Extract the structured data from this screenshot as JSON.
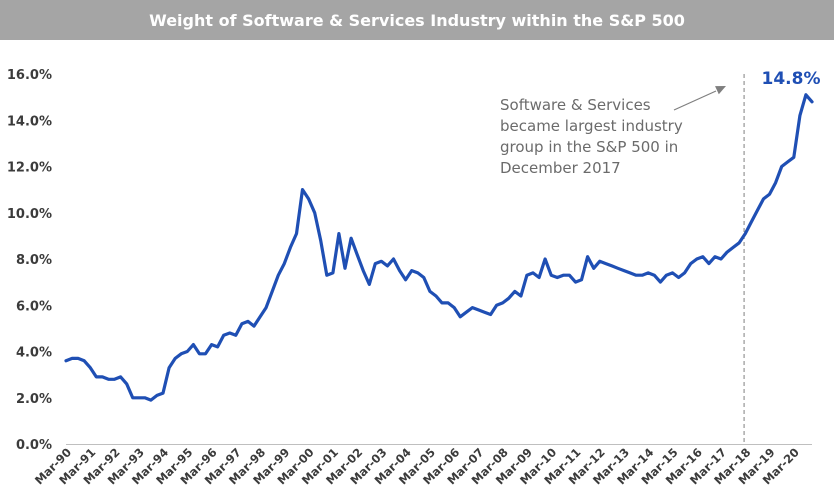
{
  "chart_data": {
    "type": "line",
    "title": "Weight of Software & Services Industry within the S&P 500",
    "xlabel": "",
    "ylabel": "",
    "ylim": [
      0,
      16
    ],
    "y_ticks": [
      "0.0%",
      "2.0%",
      "4.0%",
      "6.0%",
      "8.0%",
      "10.0%",
      "12.0%",
      "14.0%",
      "16.0%"
    ],
    "x_ticks": [
      "Mar-90",
      "Mar-91",
      "Mar-92",
      "Mar-93",
      "Mar-94",
      "Mar-95",
      "Mar-96",
      "Mar-97",
      "Mar-98",
      "Mar-99",
      "Mar-00",
      "Mar-01",
      "Mar-02",
      "Mar-03",
      "Mar-04",
      "Mar-05",
      "Mar-06",
      "Mar-07",
      "Mar-08",
      "Mar-09",
      "Mar-10",
      "Mar-11",
      "Mar-12",
      "Mar-13",
      "Mar-14",
      "Mar-15",
      "Mar-16",
      "Mar-17",
      "Mar-18",
      "Mar-19",
      "Mar-20"
    ],
    "grid": false,
    "line_color": "#1f4fb4",
    "marker_line": {
      "x": 2017.95,
      "style": "dashed",
      "color": "#7f7f7f"
    },
    "annotation": {
      "lines": [
        "Software & Services",
        "became largest industry",
        "group in the S&P 500 in",
        "December 2017"
      ]
    },
    "last_value_label": "14.8%",
    "series": [
      {
        "x": [
          1990.0,
          1990.25,
          1990.5,
          1990.75,
          1991.0,
          1991.25,
          1991.5,
          1991.75,
          1992.0,
          1992.25,
          1992.5,
          1992.75,
          1993.0,
          1993.25,
          1993.5,
          1993.75,
          1994.0,
          1994.25,
          1994.5,
          1994.75,
          1995.0,
          1995.25,
          1995.5,
          1995.75,
          1996.0,
          1996.25,
          1996.5,
          1996.75,
          1997.0,
          1997.25,
          1997.5,
          1997.75,
          1998.0,
          1998.25,
          1998.5,
          1998.75,
          1999.0,
          1999.25,
          1999.5,
          1999.75,
          2000.0,
          2000.25,
          2000.5,
          2000.75,
          2001.0,
          2001.25,
          2001.5,
          2001.75,
          2002.0,
          2002.25,
          2002.5,
          2002.75,
          2003.0,
          2003.25,
          2003.5,
          2003.75,
          2004.0,
          2004.25,
          2004.5,
          2004.75,
          2005.0,
          2005.25,
          2005.5,
          2005.75,
          2006.0,
          2006.25,
          2006.5,
          2006.75,
          2007.0,
          2007.25,
          2007.5,
          2007.75,
          2008.0,
          2008.25,
          2008.5,
          2008.75,
          2009.0,
          2009.25,
          2009.5,
          2009.75,
          2010.0,
          2010.25,
          2010.5,
          2010.75,
          2011.0,
          2011.25,
          2011.5,
          2011.75,
          2012.0,
          2012.25,
          2012.5,
          2012.75,
          2013.0,
          2013.25,
          2013.5,
          2013.75,
          2014.0,
          2014.25,
          2014.5,
          2014.75,
          2015.0,
          2015.25,
          2015.5,
          2015.75,
          2016.0,
          2016.25,
          2016.5,
          2016.75,
          2017.0,
          2017.25,
          2017.5,
          2017.75,
          2018.0,
          2018.25,
          2018.5,
          2018.75,
          2019.0,
          2019.25,
          2019.5,
          2019.75,
          2020.0,
          2020.25,
          2020.5,
          2020.75
        ],
        "values": [
          3.6,
          3.7,
          3.7,
          3.6,
          3.3,
          2.9,
          2.9,
          2.8,
          2.8,
          2.9,
          2.6,
          2.0,
          2.0,
          2.0,
          1.9,
          2.1,
          2.2,
          3.3,
          3.7,
          3.9,
          4.0,
          4.3,
          3.9,
          3.9,
          4.3,
          4.2,
          4.7,
          4.8,
          4.7,
          5.2,
          5.3,
          5.1,
          5.5,
          5.9,
          6.6,
          7.3,
          7.8,
          8.5,
          9.1,
          11.0,
          10.6,
          10.0,
          8.8,
          7.3,
          7.4,
          9.1,
          7.6,
          8.9,
          8.2,
          7.5,
          6.9,
          7.8,
          7.9,
          7.7,
          8.0,
          7.5,
          7.1,
          7.5,
          7.4,
          7.2,
          6.6,
          6.4,
          6.1,
          6.1,
          5.9,
          5.5,
          5.7,
          5.9,
          5.8,
          5.7,
          5.6,
          6.0,
          6.1,
          6.3,
          6.6,
          6.4,
          7.3,
          7.4,
          7.2,
          8.0,
          7.3,
          7.2,
          7.3,
          7.3,
          7.0,
          7.1,
          8.1,
          7.6,
          7.9,
          7.8,
          7.7,
          7.6,
          7.5,
          7.4,
          7.3,
          7.3,
          7.4,
          7.3,
          7.0,
          7.3,
          7.4,
          7.2,
          7.4,
          7.8,
          8.0,
          8.1,
          7.8,
          8.1,
          8.0,
          8.3,
          8.5,
          8.7,
          9.1,
          9.6,
          10.1,
          10.6,
          10.8,
          11.3,
          12.0,
          12.2,
          12.4,
          14.2,
          15.1,
          14.8
        ]
      }
    ]
  }
}
